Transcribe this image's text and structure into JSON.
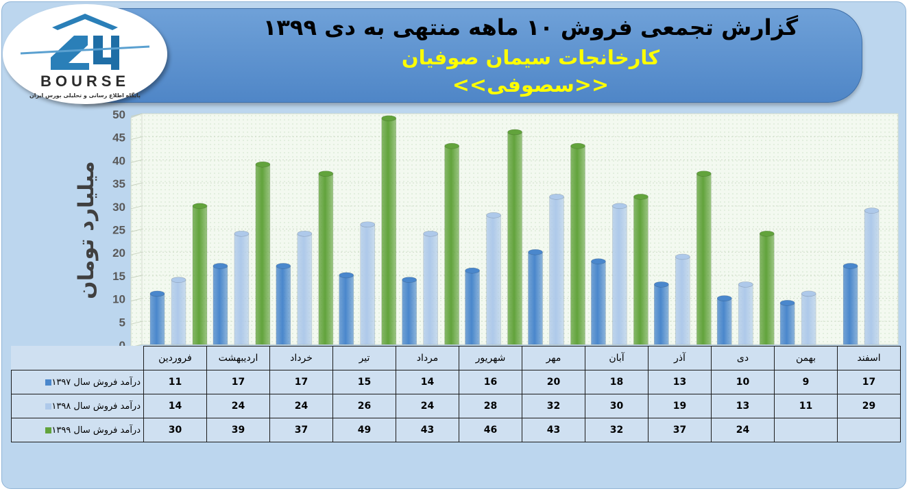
{
  "header": {
    "title_line1": "گزارش تجمعی فروش ۱۰ ماهه منتهی به دی ۱۳۹۹",
    "title_line2": "کارخانجات سیمان صوفیان",
    "title_line3": "<<سصوفی>>"
  },
  "logo": {
    "text": "BOURSE",
    "mark": "24",
    "tagline": "پایگاه اطلاع رسانی و تحلیلی بورس ایران"
  },
  "colors": {
    "s1397": "#4a87cc",
    "s1398": "#aec9ea",
    "s1399": "#62a33c",
    "plot_bg": "#f3f9f0"
  },
  "chart_data": {
    "type": "bar",
    "ylabel": "میلیارد تومان",
    "ylim": [
      0,
      50
    ],
    "yticks": [
      0,
      5,
      10,
      15,
      20,
      25,
      30,
      35,
      40,
      45,
      50
    ],
    "categories": [
      "فروردین",
      "اردیبهشت",
      "خرداد",
      "تیر",
      "مرداد",
      "شهریور",
      "مهر",
      "آبان",
      "آذر",
      "دی",
      "بهمن",
      "اسفند"
    ],
    "series": [
      {
        "name": "درآمد فروش سال ۱۳۹۷",
        "values": [
          11,
          17,
          17,
          15,
          14,
          16,
          20,
          18,
          13,
          10,
          9,
          17
        ]
      },
      {
        "name": "درآمد فروش سال ۱۳۹۸",
        "values": [
          14,
          24,
          24,
          26,
          24,
          28,
          32,
          30,
          19,
          13,
          11,
          29
        ]
      },
      {
        "name": "درآمد فروش سال ۱۳۹۹",
        "values": [
          30,
          39,
          37,
          49,
          43,
          46,
          43,
          32,
          37,
          24,
          null,
          null
        ]
      }
    ]
  }
}
